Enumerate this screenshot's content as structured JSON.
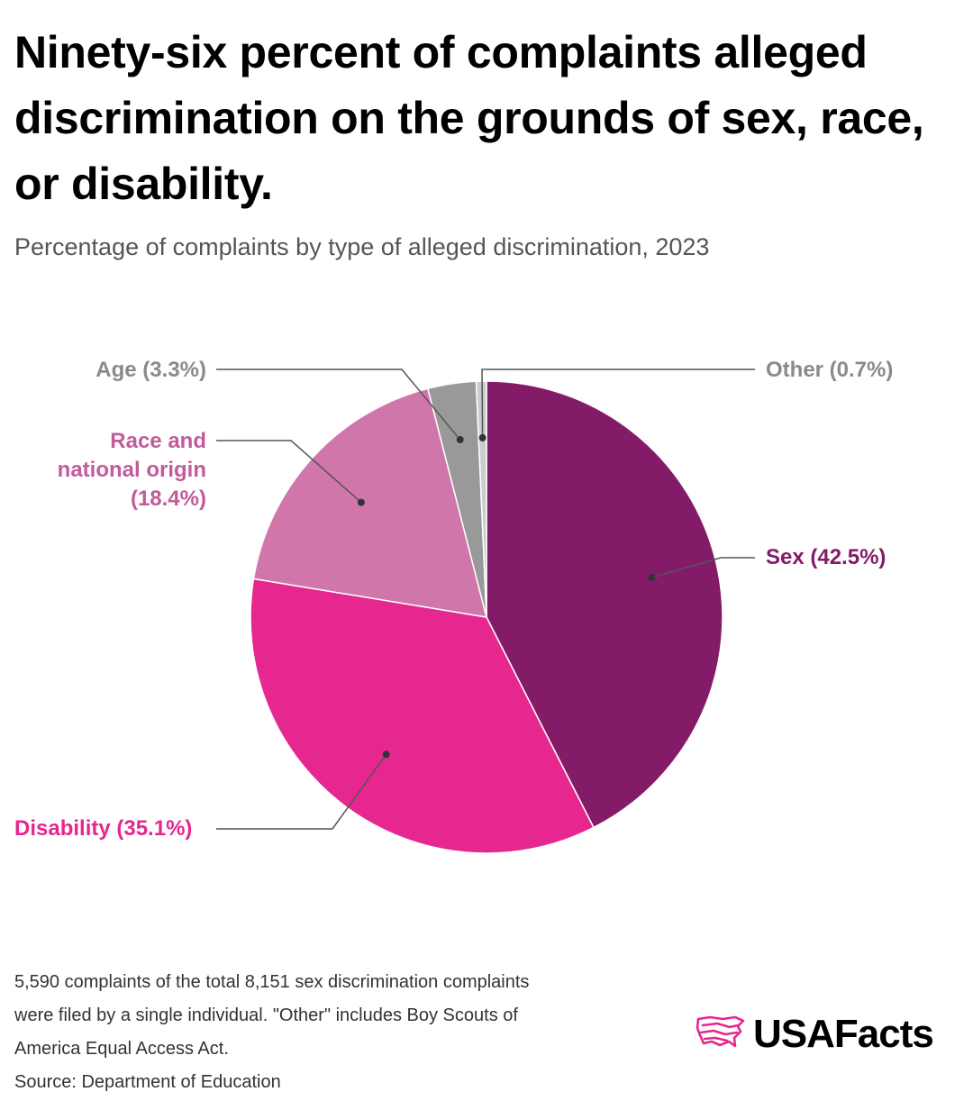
{
  "title": "Ninety-six percent of complaints alleged discrimination on the grounds of sex, race, or disability.",
  "subtitle": "Percentage of complaints by type of alleged discrimination, 2023",
  "chart_data": {
    "type": "pie",
    "title": "Percentage of complaints by type of alleged discrimination, 2023",
    "unit": "%",
    "start": "12 o'clock, clockwise",
    "slices": [
      {
        "name": "Sex",
        "value": 42.5,
        "label": "Sex (42.5%)",
        "color": "#841b68",
        "label_color": "#841b68"
      },
      {
        "name": "Disability",
        "value": 35.1,
        "label": "Disability (35.1%)",
        "color": "#e6278f",
        "label_color": "#e6278f"
      },
      {
        "name": "Race and national origin",
        "value": 18.4,
        "label_lines": [
          "Race and",
          "national origin",
          "(18.4%)"
        ],
        "color": "#d076ab",
        "label_color": "#c25b9c"
      },
      {
        "name": "Age",
        "value": 3.3,
        "label": "Age (3.3%)",
        "color": "#999999",
        "label_color": "#8a8a8a"
      },
      {
        "name": "Other",
        "value": 0.7,
        "label": "Other (0.7%)",
        "color": "#cccccc",
        "label_color": "#8a8a8a"
      }
    ]
  },
  "notes": {
    "line1": "5,590 complaints of the total 8,151 sex discrimination complaints",
    "line2": "were filed by a single individual. \"Other\" includes Boy Scouts of",
    "line3": "America Equal Access Act.",
    "source": "Source: Department of Education"
  },
  "brand": {
    "name": "USAFacts",
    "icon": "usa-map-icon",
    "accent": "#e6278f"
  }
}
